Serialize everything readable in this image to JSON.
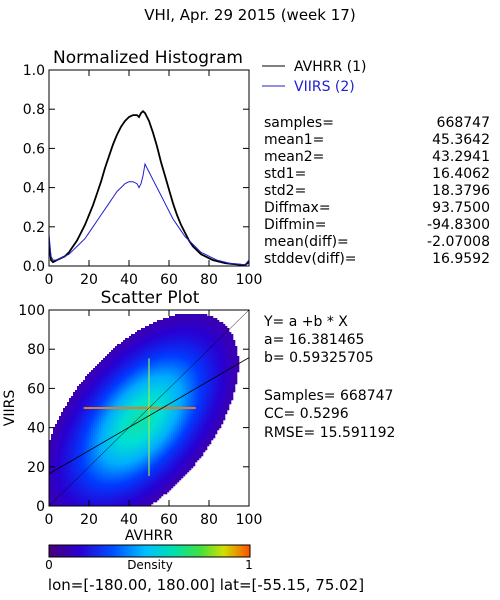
{
  "header": {
    "title": "VHI,  Apr. 29 2015 (week 17)"
  },
  "footer": {
    "extent": "lon=[-180.00, 180.00] lat=[-55.15, 75.02]"
  },
  "colors": {
    "avhrr": "#000000",
    "viirs": "#1f1fd0",
    "fit_line": "#000000",
    "density_ramp": [
      "#ffffff",
      "#5000a0",
      "#0000ff",
      "#00a0ff",
      "#00e8e8",
      "#00e060",
      "#a0e000",
      "#ffc000",
      "#ff4000"
    ]
  },
  "stats": {
    "rows": [
      {
        "label": "samples=",
        "value": "668747"
      },
      {
        "label": "mean1=",
        "value": "45.3642"
      },
      {
        "label": "mean2=",
        "value": "43.2941"
      },
      {
        "label": "std1=",
        "value": "16.4062"
      },
      {
        "label": "std2=",
        "value": "18.3796"
      },
      {
        "label": "Diffmax=",
        "value": "93.7500"
      },
      {
        "label": "Diffmin=",
        "value": "-94.8300"
      },
      {
        "label": "mean(diff)=",
        "value": "-2.07008"
      },
      {
        "label": "stddev(diff)=",
        "value": "16.9592"
      }
    ]
  },
  "regression": {
    "equation": "Y= a +b * X",
    "a_line": "a= 16.381465",
    "b_line": "b= 0.59325705",
    "samples_line": "Samples= 668747",
    "cc_line": "CC=   0.5296",
    "rmse_line": "RMSE= 15.591192",
    "a": 16.381465,
    "b": 0.59325705
  },
  "colorbar": {
    "label": "Density",
    "min_label": "0",
    "max_label": "1"
  },
  "chart_data": [
    {
      "type": "line",
      "title": "Normalized Histogram",
      "xlim": [
        0,
        100
      ],
      "ylim": [
        0,
        1.0
      ],
      "xticks": [
        "0",
        "20",
        "40",
        "60",
        "80",
        "100"
      ],
      "yticks": [
        "0.0",
        "0.2",
        "0.4",
        "0.6",
        "0.8",
        "1.0"
      ],
      "legend_position": "top-right",
      "x": [
        0,
        1,
        2,
        4,
        6,
        8,
        10,
        12,
        14,
        16,
        18,
        20,
        22,
        24,
        26,
        28,
        30,
        32,
        34,
        36,
        38,
        40,
        42,
        44,
        45,
        46,
        47,
        48,
        49,
        50,
        52,
        54,
        56,
        58,
        60,
        62,
        64,
        66,
        68,
        70,
        72,
        74,
        76,
        78,
        80,
        82,
        84,
        86,
        88,
        90,
        92,
        94,
        96,
        98,
        100
      ],
      "series": [
        {
          "name": "AVHRR (1)",
          "color": "#000000",
          "values": [
            0.12,
            0.03,
            0.02,
            0.03,
            0.04,
            0.05,
            0.07,
            0.1,
            0.13,
            0.17,
            0.21,
            0.26,
            0.31,
            0.37,
            0.43,
            0.5,
            0.56,
            0.62,
            0.67,
            0.71,
            0.74,
            0.76,
            0.77,
            0.77,
            0.76,
            0.78,
            0.79,
            0.78,
            0.76,
            0.74,
            0.68,
            0.61,
            0.53,
            0.46,
            0.39,
            0.32,
            0.26,
            0.21,
            0.17,
            0.13,
            0.1,
            0.08,
            0.06,
            0.05,
            0.04,
            0.03,
            0.025,
            0.02,
            0.015,
            0.012,
            0.01,
            0.008,
            0.006,
            0.005,
            0.02
          ]
        },
        {
          "name": "VIIRS (2)",
          "color": "#1f1fd0",
          "values": [
            0.16,
            0.05,
            0.03,
            0.03,
            0.04,
            0.05,
            0.06,
            0.08,
            0.1,
            0.12,
            0.14,
            0.17,
            0.2,
            0.23,
            0.26,
            0.29,
            0.32,
            0.35,
            0.38,
            0.4,
            0.42,
            0.43,
            0.43,
            0.42,
            0.4,
            0.42,
            0.46,
            0.52,
            0.5,
            0.48,
            0.44,
            0.4,
            0.36,
            0.32,
            0.28,
            0.24,
            0.21,
            0.18,
            0.15,
            0.13,
            0.11,
            0.09,
            0.07,
            0.06,
            0.05,
            0.04,
            0.03,
            0.025,
            0.02,
            0.015,
            0.012,
            0.01,
            0.008,
            0.006,
            0.03
          ]
        }
      ]
    },
    {
      "type": "heatmap",
      "title": "Scatter Plot",
      "xlabel": "AVHRR",
      "ylabel": "VIIRS",
      "xlim": [
        0,
        100
      ],
      "ylim": [
        0,
        100
      ],
      "xticks": [
        "0",
        "20",
        "40",
        "60",
        "80",
        "100"
      ],
      "yticks": [
        "0",
        "20",
        "40",
        "60",
        "80",
        "100"
      ],
      "density_center": [
        45.36,
        43.29
      ],
      "density_std": [
        16.41,
        18.38
      ],
      "correlation": 0.5296,
      "stripe_x": 50,
      "stripe_y": 50,
      "fit_line": {
        "a": 16.381465,
        "b": 0.59325705
      }
    }
  ]
}
